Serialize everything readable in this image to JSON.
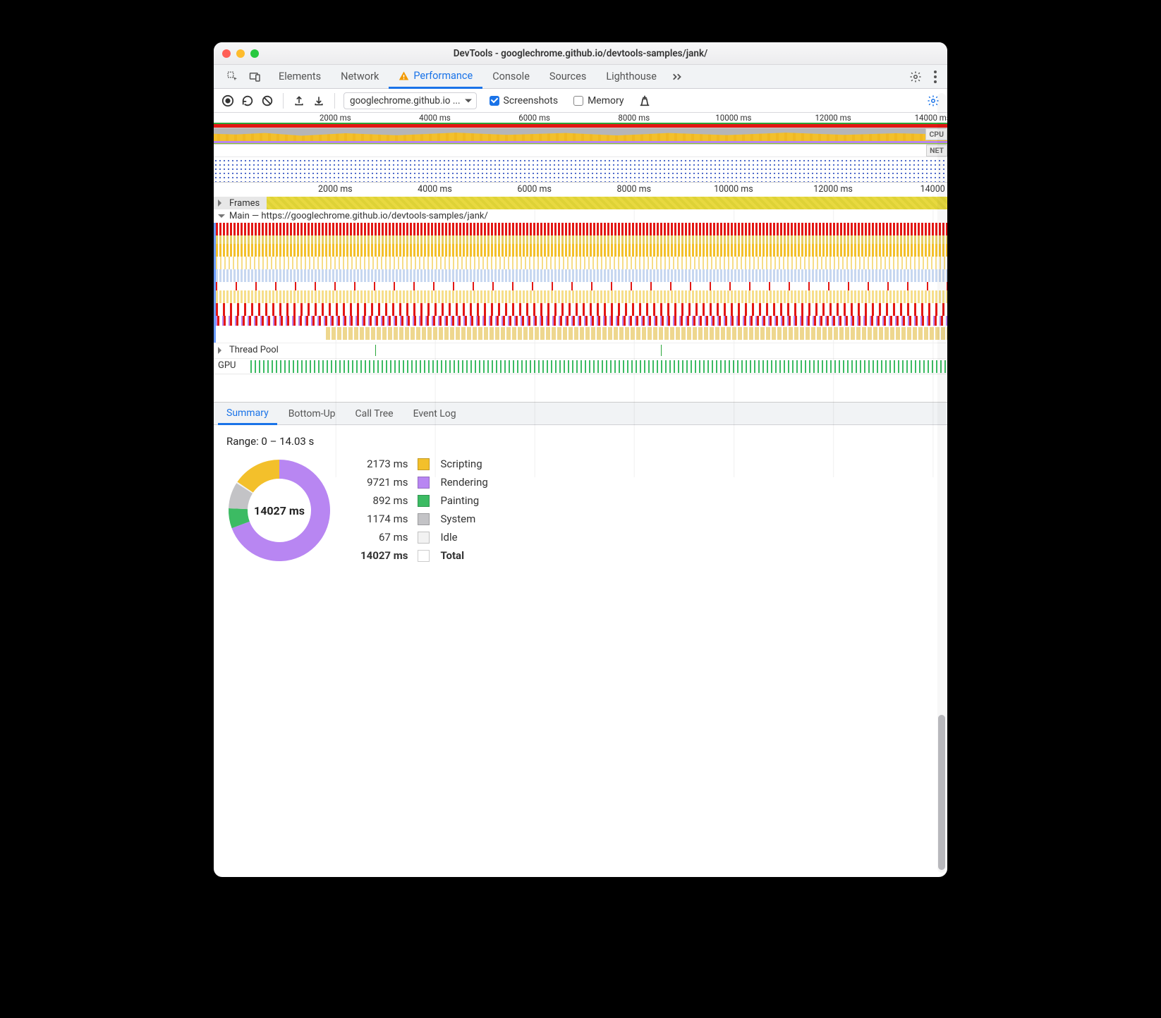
{
  "window": {
    "title": "DevTools - googlechrome.github.io/devtools-samples/jank/"
  },
  "tabs": {
    "items": [
      "Elements",
      "Network",
      "Performance",
      "Console",
      "Sources",
      "Lighthouse"
    ],
    "active": "Performance",
    "has_warning_icon_on_active": true
  },
  "toolbar": {
    "host": "googlechrome.github.io ...",
    "screenshots_label": "Screenshots",
    "screenshots_checked": true,
    "memory_label": "Memory",
    "memory_checked": false
  },
  "overview": {
    "time_ticks_ms": [
      2000,
      4000,
      6000,
      8000,
      10000,
      12000,
      14000
    ],
    "cpu_label": "CPU",
    "net_label": "NET"
  },
  "timeline": {
    "time_ticks_ms": [
      2000,
      4000,
      6000,
      8000,
      10000,
      12000,
      14000
    ],
    "frames_label": "Frames",
    "main_label": "Main — https://googlechrome.github.io/devtools-samples/jank/",
    "threadpool_label": "Thread Pool",
    "gpu_label": "GPU"
  },
  "detail_tabs": {
    "items": [
      "Summary",
      "Bottom-Up",
      "Call Tree",
      "Event Log"
    ],
    "active": "Summary"
  },
  "summary": {
    "range_label": "Range: 0 – 14.03 s",
    "total_ms": 14027,
    "center_label": "14027 ms",
    "rows": [
      {
        "ms": "2173 ms",
        "label": "Scripting",
        "color": "#f3c02b"
      },
      {
        "ms": "9721 ms",
        "label": "Rendering",
        "color": "#b886f2"
      },
      {
        "ms": "892 ms",
        "label": "Painting",
        "color": "#3cbb63"
      },
      {
        "ms": "1174 ms",
        "label": "System",
        "color": "#c3c3c6"
      },
      {
        "ms": "67 ms",
        "label": "Idle",
        "color": "#f2f2f2"
      },
      {
        "ms": "14027 ms",
        "label": "Total",
        "color": "#ffffff",
        "bold": true
      }
    ],
    "donut": {
      "segments": [
        {
          "color": "#b886f2",
          "value": 9721
        },
        {
          "color": "#3cbb63",
          "value": 892
        },
        {
          "color": "#c3c3c6",
          "value": 1174
        },
        {
          "color": "#f2f2f2",
          "value": 67
        },
        {
          "color": "#f3c02b",
          "value": 2173
        }
      ],
      "start_angle_deg": 90
    }
  },
  "colors": {
    "scripting": "#f3c02b",
    "rendering": "#b886f2",
    "painting": "#3cbb63",
    "system": "#c3c3c6",
    "idle": "#f2f2f2",
    "task_red": "#e31713",
    "lightblue": "#c7d7f0",
    "yellow2": "#e8d166",
    "accent": "#1a73e8"
  }
}
